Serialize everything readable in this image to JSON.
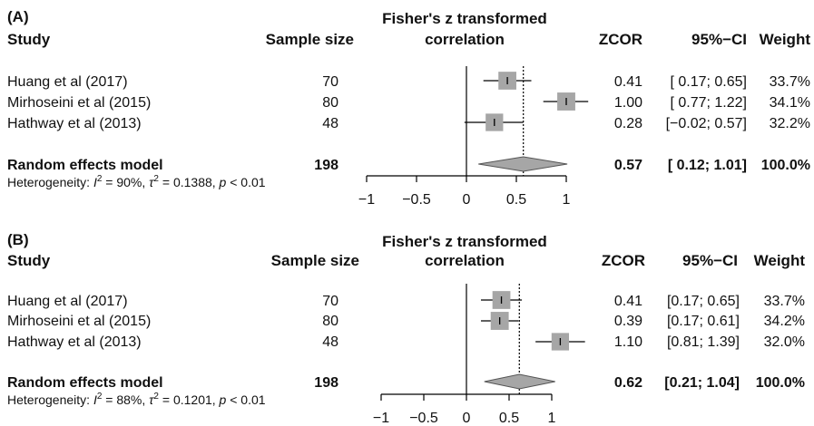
{
  "chart_data": [
    {
      "type": "forest",
      "panel_label": "(A)",
      "headers": {
        "study": "Study",
        "sample_size": "Sample size",
        "effect_line1": "Fisher's z transformed",
        "effect_line2": "correlation",
        "zcor": "ZCOR",
        "ci": "95%−CI",
        "weight": "Weight"
      },
      "studies": [
        {
          "name": "Huang et al (2017)",
          "n": "70",
          "est": 0.41,
          "lo": 0.17,
          "hi": 0.65,
          "zcor": "0.41",
          "ci": "[ 0.17; 0.65]",
          "weight": "33.7%",
          "weight_value": 33.7
        },
        {
          "name": "Mirhoseini et al (2015)",
          "n": "80",
          "est": 1.0,
          "lo": 0.77,
          "hi": 1.22,
          "zcor": "1.00",
          "ci": "[ 0.77; 1.22]",
          "weight": "34.1%",
          "weight_value": 34.1
        },
        {
          "name": "Hathway et al (2013)",
          "n": "48",
          "est": 0.28,
          "lo": -0.02,
          "hi": 0.57,
          "zcor": "0.28",
          "ci": "[−0.02; 0.57]",
          "weight": "32.2%",
          "weight_value": 32.2
        }
      ],
      "pooled": {
        "name": "Random effects model",
        "n": "198",
        "est": 0.57,
        "lo": 0.12,
        "hi": 1.01,
        "zcor": "0.57",
        "ci": "[ 0.12; 1.01]",
        "weight": "100.0%"
      },
      "heterogeneity": {
        "prefix": "Heterogeneity: ",
        "i2_symbol": "I",
        "i2_sup": "2",
        "i2_value": " = 90%, ",
        "tau2_symbol": "τ",
        "tau2_sup": "2",
        "tau2_value": " = 0.1388, ",
        "p_symbol": "p",
        "p_value": " < 0.01"
      },
      "x_ticks": [
        -1,
        -0.5,
        0,
        0.5,
        1
      ],
      "x_tick_labels": [
        "−1",
        "−0.5",
        "0",
        "0.5",
        "1"
      ],
      "xlim": [
        -1,
        1
      ],
      "colors": {
        "box": "#a6a6a6",
        "diamond": "#a6a6a6",
        "line": "#000000"
      }
    },
    {
      "type": "forest",
      "panel_label": "(B)",
      "headers": {
        "study": "Study",
        "sample_size": "Sample size",
        "effect_line1": "Fisher's z transformed",
        "effect_line2": "correlation",
        "zcor": "ZCOR",
        "ci": "95%−CI",
        "weight": "Weight"
      },
      "studies": [
        {
          "name": "Huang et al (2017)",
          "n": "70",
          "est": 0.41,
          "lo": 0.17,
          "hi": 0.65,
          "zcor": "0.41",
          "ci": "[0.17; 0.65]",
          "weight": "33.7%",
          "weight_value": 33.7
        },
        {
          "name": "Mirhoseini et al (2015)",
          "n": "80",
          "est": 0.39,
          "lo": 0.17,
          "hi": 0.61,
          "zcor": "0.39",
          "ci": "[0.17; 0.61]",
          "weight": "34.2%",
          "weight_value": 34.2
        },
        {
          "name": "Hathway et al (2013)",
          "n": "48",
          "est": 1.1,
          "lo": 0.81,
          "hi": 1.39,
          "zcor": "1.10",
          "ci": "[0.81; 1.39]",
          "weight": "32.0%",
          "weight_value": 32.0
        }
      ],
      "pooled": {
        "name": "Random effects model",
        "n": "198",
        "est": 0.62,
        "lo": 0.21,
        "hi": 1.04,
        "zcor": "0.62",
        "ci": "[0.21; 1.04]",
        "weight": "100.0%"
      },
      "heterogeneity": {
        "prefix": "Heterogeneity: ",
        "i2_symbol": "I",
        "i2_sup": "2",
        "i2_value": " = 88%, ",
        "tau2_symbol": "τ",
        "tau2_sup": "2",
        "tau2_value": " = 0.1201, ",
        "p_symbol": "p",
        "p_value": " < 0.01"
      },
      "x_ticks": [
        -1,
        -0.5,
        0,
        0.5,
        1
      ],
      "x_tick_labels": [
        "−1",
        "−0.5",
        "0",
        "0.5",
        "1"
      ],
      "xlim": [
        -1,
        1
      ],
      "colors": {
        "box": "#a6a6a6",
        "diamond": "#a6a6a6",
        "line": "#000000"
      }
    }
  ]
}
